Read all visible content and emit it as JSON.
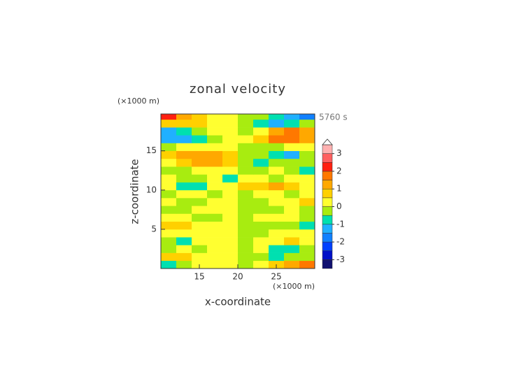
{
  "chart_data": {
    "type": "heatmap",
    "title": "zonal velocity",
    "x_label": "x-coordinate",
    "y_label": "z-coordinate",
    "x_unit": "(×1000 m)",
    "y_unit": "(×1000 m)",
    "time_label": "5760 s",
    "xlim": [
      10,
      30
    ],
    "ylim": [
      0,
      19.7
    ],
    "xticks": [
      15,
      20,
      25
    ],
    "yticks": [
      5,
      10,
      15
    ],
    "x": [
      11,
      13,
      15,
      17,
      19,
      21,
      23,
      25,
      27,
      29
    ],
    "z": [
      0.5,
      1.5,
      2.5,
      3.5,
      4.5,
      5.5,
      6.5,
      7.5,
      8.5,
      9.5,
      10.5,
      11.5,
      12.5,
      13.5,
      14.5,
      15.5,
      16.5,
      17.5,
      18.5,
      19.5
    ],
    "values": [
      [
        -1,
        -0.5,
        0.3,
        0.2,
        0.2,
        -0.2,
        0.3,
        0.6,
        1,
        1.5
      ],
      [
        0.8,
        0.6,
        0.3,
        0.2,
        0.2,
        -0.2,
        -0.3,
        -0.6,
        -0.5,
        -0.3
      ],
      [
        -0.2,
        0.2,
        -0.3,
        0.3,
        0.2,
        -0.2,
        0.3,
        -0.6,
        -0.8,
        -0.3
      ],
      [
        -0.3,
        -0.6,
        0.2,
        0.2,
        0.3,
        -0.3,
        0.2,
        0.3,
        0.6,
        0.3
      ],
      [
        0.3,
        0.2,
        0.2,
        0.3,
        0.3,
        -0.2,
        -0.2,
        0.2,
        0.2,
        0.3
      ],
      [
        0.8,
        0.6,
        0.2,
        0.3,
        0.2,
        -0.2,
        -0.3,
        -0.2,
        -0.5,
        -0.8
      ],
      [
        0.2,
        0.3,
        -0.2,
        -0.3,
        0.2,
        -0.3,
        0.2,
        0.3,
        0.2,
        -0.5
      ],
      [
        -0.3,
        -0.2,
        0.2,
        0.3,
        0.2,
        -0.2,
        -0.3,
        -0.2,
        0.3,
        -0.2
      ],
      [
        0.2,
        -0.2,
        -0.3,
        0.3,
        0.2,
        -0.2,
        -0.3,
        0.2,
        0.2,
        0.6
      ],
      [
        -0.3,
        0.2,
        0.2,
        -0.3,
        0.2,
        -0.3,
        0.2,
        0.3,
        -0.3,
        0.2
      ],
      [
        0.3,
        -0.8,
        -1,
        0.2,
        0.3,
        0.6,
        0.5,
        1,
        0.8,
        0.3
      ],
      [
        0.2,
        -0.3,
        -0.3,
        0.2,
        -0.6,
        0.3,
        0.2,
        -0.3,
        0.3,
        0.2
      ],
      [
        -0.3,
        -0.2,
        0.3,
        0.3,
        0.2,
        -0.3,
        -0.3,
        0.2,
        -0.5,
        -1
      ],
      [
        0.3,
        0.8,
        1.2,
        1.0,
        0.5,
        -0.5,
        -0.8,
        -0.5,
        -0.3,
        -0.3
      ],
      [
        0.5,
        1.2,
        1.3,
        1.2,
        0.5,
        -0.3,
        -0.5,
        -1,
        -1.2,
        -0.5
      ],
      [
        -0.3,
        0.2,
        0.3,
        0.2,
        0.1,
        -0.1,
        -0.2,
        -0.3,
        0.2,
        0.3
      ],
      [
        -1.2,
        -1.5,
        -0.8,
        -0.3,
        0.2,
        0.3,
        0.8,
        1.8,
        1.5,
        1
      ],
      [
        -1.5,
        -1,
        -0.3,
        0.3,
        0.2,
        -0.2,
        0.3,
        1,
        1.5,
        1.2
      ],
      [
        0.8,
        0.5,
        0.8,
        0.3,
        0.2,
        -0.3,
        -1,
        -1.5,
        -0.8,
        -0.5
      ],
      [
        2,
        1,
        0.5,
        0.3,
        0.2,
        -0.3,
        -0.5,
        -1,
        -1.5,
        -2
      ]
    ],
    "levels": [
      -3.5,
      -3,
      -2.5,
      -2,
      -1.5,
      -1,
      -0.5,
      0,
      0.5,
      1,
      1.5,
      2,
      2.5,
      3,
      3.5
    ],
    "colors": [
      "#101070",
      "#0010c8",
      "#0040ff",
      "#1080ff",
      "#20b0ff",
      "#00e0b0",
      "#a8ec10",
      "#ffff30",
      "#ffd000",
      "#ffa800",
      "#ff7800",
      "#ff2010",
      "#ff6060",
      "#ffb0b0"
    ],
    "colorbar_ticks": [
      -3,
      -2,
      -1,
      0,
      1,
      2,
      3
    ]
  }
}
